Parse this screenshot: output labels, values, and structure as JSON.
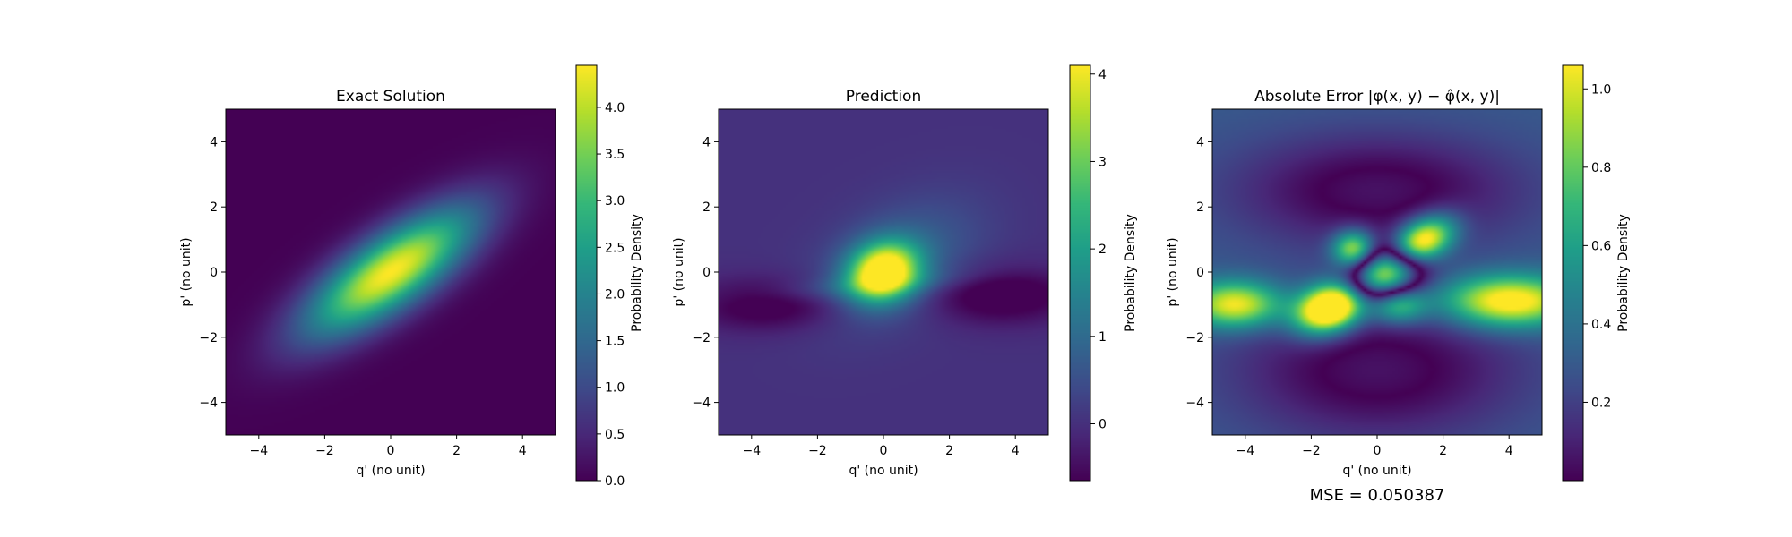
{
  "chart_data": [
    {
      "type": "heatmap",
      "title": "Exact Solution",
      "xlabel": "q' (no unit)",
      "ylabel": "p' (no unit)",
      "xlim": [
        -5,
        5
      ],
      "ylim": [
        -5,
        5
      ],
      "xticks": [
        -4,
        -2,
        0,
        2,
        4
      ],
      "yticks": [
        -4,
        -2,
        0,
        2,
        4
      ],
      "colormap": "viridis",
      "colorbar": {
        "label": "Probability Density",
        "range": [
          0.0,
          4.45
        ],
        "ticks": [
          "0.0",
          "0.5",
          "1.0",
          "1.5",
          "2.0",
          "2.5",
          "3.0",
          "3.5",
          "4.0"
        ],
        "tick_values": [
          0,
          0.5,
          1,
          1.5,
          2,
          2.5,
          3,
          3.5,
          4
        ]
      },
      "field": {
        "blobs": [
          {
            "cx": 0,
            "cy": 0,
            "amp": 4.45,
            "sx": 2.1,
            "sy": 0.75,
            "angle_deg": 35
          }
        ],
        "background": 0.0
      }
    },
    {
      "type": "heatmap",
      "title": "Prediction",
      "xlabel": "q' (no unit)",
      "ylabel": "p' (no unit)",
      "xlim": [
        -5,
        5
      ],
      "ylim": [
        -5,
        5
      ],
      "xticks": [
        -4,
        -2,
        0,
        2,
        4
      ],
      "yticks": [
        -4,
        -2,
        0,
        2,
        4
      ],
      "colormap": "viridis",
      "colorbar": {
        "label": "Probability Density",
        "range": [
          -0.65,
          4.1
        ],
        "ticks": [
          "0",
          "1",
          "2",
          "3",
          "4"
        ],
        "tick_values": [
          0,
          1,
          2,
          3,
          4
        ]
      },
      "field": {
        "blobs": [
          {
            "cx": 0,
            "cy": 0,
            "amp": 4.6,
            "sx": 0.75,
            "sy": 0.6,
            "angle_deg": 20
          },
          {
            "cx": 0.5,
            "cy": 0.3,
            "amp": 0.9,
            "sx": 1.8,
            "sy": 1.1,
            "angle_deg": 30
          },
          {
            "cx": -3.5,
            "cy": -1.0,
            "amp": -0.95,
            "sx": 1.6,
            "sy": 0.55,
            "angle_deg": 0
          },
          {
            "cx": 3.5,
            "cy": -0.7,
            "amp": -1.05,
            "sx": 1.6,
            "sy": 0.6,
            "angle_deg": 0
          },
          {
            "cx": -0.5,
            "cy": -0.4,
            "amp": 0.5,
            "sx": 2.5,
            "sy": 0.25,
            "angle_deg": 5
          }
        ],
        "background": 0.02
      }
    },
    {
      "type": "heatmap",
      "title": "Absolute Error |φ(x, y) − φ̂(x, y)|",
      "xlabel": "q' (no unit)",
      "ylabel": "p' (no unit)",
      "xlim": [
        -5,
        5
      ],
      "ylim": [
        -5,
        5
      ],
      "xticks": [
        -4,
        -2,
        0,
        2,
        4
      ],
      "yticks": [
        -4,
        -2,
        0,
        2,
        4
      ],
      "colormap": "viridis",
      "colorbar": {
        "label": "Probability Density",
        "range": [
          0.0,
          1.06
        ],
        "ticks": [
          "0.2",
          "0.4",
          "0.6",
          "0.8",
          "1.0"
        ],
        "tick_values": [
          0.2,
          0.4,
          0.6,
          0.8,
          1.0
        ]
      },
      "annotation": "MSE = 0.050387",
      "field": {
        "mode": "abs",
        "blobs": [
          {
            "cx": -1.4,
            "cy": -1.1,
            "amp": 1.35,
            "sx": 0.75,
            "sy": 0.5,
            "angle_deg": 20
          },
          {
            "cx": 1.3,
            "cy": 0.9,
            "amp": 1.15,
            "sx": 0.75,
            "sy": 0.45,
            "angle_deg": 30
          },
          {
            "cx": -0.7,
            "cy": 0.7,
            "amp": 0.8,
            "sx": 0.45,
            "sy": 0.4,
            "angle_deg": 0
          },
          {
            "cx": 0.3,
            "cy": 0.0,
            "amp": -1.3,
            "sx": 0.8,
            "sy": 0.55,
            "angle_deg": 25
          },
          {
            "cx": 4.0,
            "cy": -0.9,
            "amp": 0.9,
            "sx": 1.4,
            "sy": 0.55,
            "angle_deg": 0
          },
          {
            "cx": -4.3,
            "cy": -1.0,
            "amp": 0.8,
            "sx": 1.0,
            "sy": 0.5,
            "angle_deg": 0
          },
          {
            "cx": 0.6,
            "cy": -1.0,
            "amp": 0.6,
            "sx": 0.6,
            "sy": 0.4,
            "angle_deg": 0
          },
          {
            "cx": 0.0,
            "cy": 2.5,
            "amp": -0.35,
            "sx": 3.0,
            "sy": 1.2,
            "angle_deg": 0
          },
          {
            "cx": 0.0,
            "cy": -3.0,
            "amp": -0.35,
            "sx": 3.0,
            "sy": 1.5,
            "angle_deg": 0
          }
        ],
        "background": 0.3
      }
    }
  ]
}
